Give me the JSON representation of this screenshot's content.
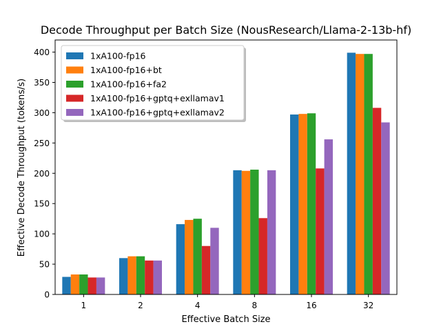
{
  "chart_data": {
    "type": "bar",
    "title": "Decode Throughput per Batch Size (NousResearch/Llama-2-13b-hf)",
    "xlabel": "Effective Batch Size",
    "ylabel": "Effective Decode Throughput (tokens/s)",
    "categories": [
      "1",
      "2",
      "4",
      "8",
      "16",
      "32"
    ],
    "ylim": [
      0,
      420
    ],
    "yticks": [
      0,
      50,
      100,
      150,
      200,
      250,
      300,
      350,
      400
    ],
    "legend_position": "top-left",
    "series": [
      {
        "name": "1xA100-fp16",
        "color": "#1f77b4",
        "values": [
          29,
          60,
          116,
          205,
          297,
          399
        ]
      },
      {
        "name": "1xA100-fp16+bt",
        "color": "#ff7f0e",
        "values": [
          33,
          63,
          123,
          204,
          298,
          397
        ]
      },
      {
        "name": "1xA100-fp16+fa2",
        "color": "#2ca02c",
        "values": [
          33,
          63,
          125,
          206,
          299,
          397
        ]
      },
      {
        "name": "1xA100-fp16+gptq+exllamav1",
        "color": "#d62728",
        "values": [
          28,
          56,
          80,
          126,
          208,
          308
        ]
      },
      {
        "name": "1xA100-fp16+gptq+exllamav2",
        "color": "#9467bd",
        "values": [
          28,
          56,
          110,
          205,
          256,
          284
        ]
      }
    ]
  }
}
